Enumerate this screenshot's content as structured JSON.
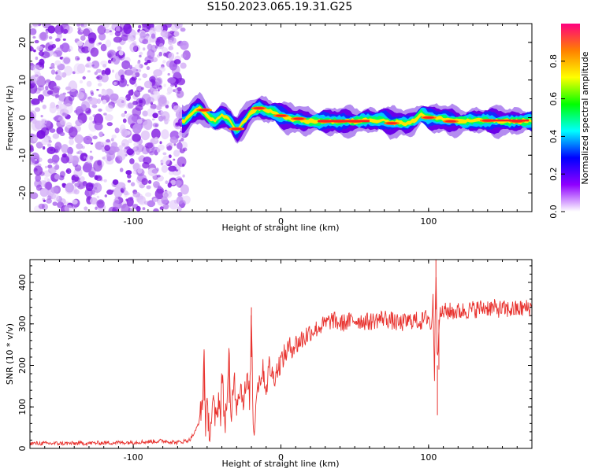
{
  "title": "S150.2023.065.19.31.G25",
  "colors": {
    "snr_line": "#e8322e",
    "noise": "#8a2be2",
    "ridge_core": "#ff2020"
  },
  "chart_data": [
    {
      "type": "heatmap",
      "xlabel": "Height of straight line (km)",
      "ylabel": "Frequency (Hz)",
      "xlim": [
        -170,
        170
      ],
      "ylim": [
        -25,
        25
      ],
      "xticks": [
        -100,
        0,
        100
      ],
      "yticks": [
        -20,
        -10,
        0,
        10,
        20
      ],
      "colorbar": {
        "label": "Normalized spectral amplitude",
        "ticks": [
          "0.0",
          "0.2",
          "0.4",
          "0.6",
          "0.8"
        ],
        "range": [
          0,
          1
        ],
        "colormap": [
          "#ffffff",
          "#8f00ff",
          "#0000ff",
          "#00ffff",
          "#00ff00",
          "#ffff00",
          "#ff8000",
          "#ff0080"
        ]
      },
      "noise_region_x": [
        -170,
        -67
      ],
      "ridge": {
        "x": [
          -65,
          -60,
          -55,
          -50,
          -45,
          -40,
          -35,
          -30,
          -25,
          -20,
          -15,
          -10,
          -5,
          0,
          5,
          10,
          20,
          30,
          40,
          50,
          60,
          65,
          70,
          75,
          80,
          85,
          90,
          95,
          100,
          110,
          120,
          130,
          140,
          150,
          160,
          170
        ],
        "y": [
          -1,
          1.5,
          2.5,
          0.5,
          -1,
          0.5,
          -0.5,
          -3.5,
          -1,
          1.5,
          2.5,
          2,
          1.5,
          0.5,
          -0.2,
          -0.5,
          -1,
          -1,
          -1,
          -1,
          -0.5,
          -0.8,
          -0.5,
          -1.5,
          -1.2,
          -1.5,
          -1,
          1,
          0,
          -0.3,
          -1,
          -0.8,
          -0.8,
          -1,
          -1,
          -0.8
        ]
      }
    },
    {
      "type": "line",
      "xlabel": "Height of straight line (km)",
      "ylabel": "SNR (10 * v/v)",
      "xlim": [
        -170,
        170
      ],
      "ylim": [
        0,
        455
      ],
      "xticks": [
        -100,
        0,
        100
      ],
      "yticks": [
        0,
        100,
        200,
        300,
        400
      ],
      "series": [
        {
          "x": [
            -170,
            -140,
            -110,
            -90,
            -80,
            -70,
            -62,
            -58,
            -55,
            -53,
            -52,
            -51,
            -50,
            -48,
            -46,
            -44,
            -42,
            -41,
            -40,
            -38,
            -36,
            -35,
            -34,
            -32,
            -30,
            -28,
            -25,
            -23,
            -21,
            -20,
            -19,
            -18,
            -17,
            -15,
            -12,
            -10,
            -8,
            -5,
            0,
            5,
            10,
            15,
            20,
            25,
            30,
            35,
            40,
            50,
            60,
            70,
            80,
            90,
            95,
            100,
            102,
            103,
            104,
            105,
            106,
            107,
            108,
            110,
            120,
            130,
            140,
            150,
            160,
            170
          ],
          "y": [
            12,
            12,
            14,
            16,
            18,
            14,
            20,
            40,
            70,
            120,
            235,
            60,
            90,
            40,
            110,
            60,
            130,
            70,
            180,
            60,
            140,
            230,
            50,
            180,
            110,
            150,
            120,
            160,
            120,
            340,
            90,
            20,
            130,
            160,
            190,
            140,
            200,
            170,
            210,
            240,
            250,
            265,
            280,
            290,
            300,
            310,
            300,
            310,
            305,
            315,
            300,
            310,
            305,
            320,
            280,
            380,
            160,
            455,
            200,
            310,
            320,
            330,
            330,
            335,
            340,
            335,
            335,
            340
          ]
        }
      ]
    }
  ]
}
